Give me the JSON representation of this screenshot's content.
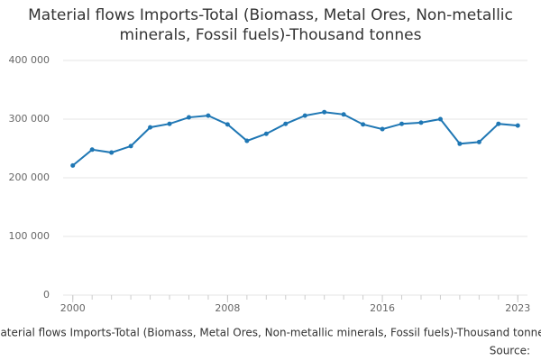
{
  "chart_data": {
    "type": "line",
    "title": "Material flows Imports-Total (Biomass, Metal Ores, Non-metallic minerals, Fossil fuels)-Thousand tonnes",
    "x_label": "Material flows Imports-Total (Biomass, Metal Ores, Non-metallic minerals, Fossil fuels)-Thousand tonnes",
    "source": "Source:",
    "x": [
      2000,
      2001,
      2002,
      2003,
      2004,
      2005,
      2006,
      2007,
      2008,
      2009,
      2010,
      2011,
      2012,
      2013,
      2014,
      2015,
      2016,
      2017,
      2018,
      2019,
      2020,
      2021,
      2022,
      2023
    ],
    "series": [
      {
        "name": "Imports-Total",
        "color": "#1f77b4",
        "values": [
          221000,
          248000,
          243000,
          254000,
          286000,
          292000,
          303000,
          306000,
          291000,
          263000,
          275000,
          292000,
          306000,
          312000,
          308000,
          291000,
          283000,
          292000,
          294000,
          300000,
          258000,
          261000,
          292000,
          289000
        ]
      }
    ],
    "xlim": [
      1999.5,
      2023.5
    ],
    "xticks": [
      2000,
      2008,
      2016,
      2023
    ],
    "ylim": [
      0,
      400000
    ],
    "yticks": [
      0,
      {
        "value": 100000,
        "label": "100 000"
      },
      {
        "value": 200000,
        "label": "200 000"
      },
      {
        "value": 300000,
        "label": "300 000"
      },
      {
        "value": 400000,
        "label": "400 000"
      }
    ],
    "grid": true
  }
}
